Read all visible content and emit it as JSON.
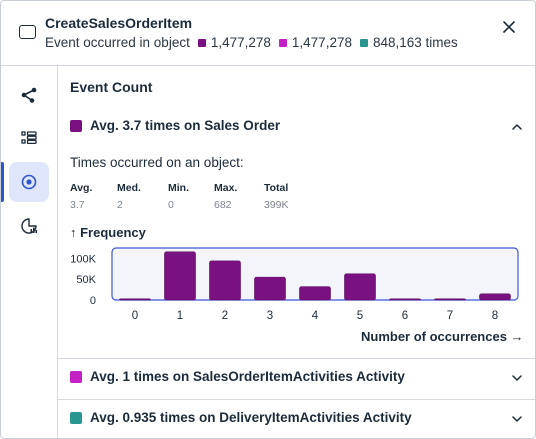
{
  "header": {
    "title": "CreateSalesOrderItem",
    "subtitle": "Event occurred in object",
    "counts": [
      {
        "value": "1,477,278",
        "color": "#7a1180"
      },
      {
        "value": "1,477,278",
        "color": "#c21fc4"
      },
      {
        "value": "848,163 times",
        "color": "#2a9690"
      }
    ],
    "close_icon": "close-icon"
  },
  "sidebar": {
    "items": [
      {
        "icon": "graph-nodes-icon",
        "active": false
      },
      {
        "icon": "list-icon",
        "active": false
      },
      {
        "icon": "target-icon",
        "active": true
      },
      {
        "icon": "pie-chart-icon",
        "active": false
      }
    ]
  },
  "main": {
    "section_title": "Event Count",
    "accordions": [
      {
        "label": "Avg. 3.7 times on Sales Order",
        "color": "#7a1180",
        "expanded": true
      },
      {
        "label": "Avg. 1 times on SalesOrderItemActivities Activity",
        "color": "#c21fc4",
        "expanded": false
      },
      {
        "label": "Avg. 0.935 times on DeliveryItemActivities Activity",
        "color": "#2a9690",
        "expanded": false
      }
    ],
    "occurrence_label": "Times occurred on an object:",
    "stats": [
      {
        "key": "Avg.",
        "value": "3.7"
      },
      {
        "key": "Med.",
        "value": "2"
      },
      {
        "key": "Min.",
        "value": "0"
      },
      {
        "key": "Max.",
        "value": "682"
      },
      {
        "key": "Total",
        "value": "399K"
      }
    ]
  },
  "chart_data": {
    "type": "bar",
    "title": "↑ Frequency",
    "xlabel": "Number of occurrences →",
    "categories": [
      "0",
      "1",
      "2",
      "3",
      "4",
      "5",
      "6",
      "7",
      "8"
    ],
    "values": [
      1500,
      116000,
      94000,
      55000,
      32000,
      63000,
      3000,
      1500,
      15000
    ],
    "y_ticks": [
      "100K",
      "50K",
      "0"
    ],
    "ylim": [
      0,
      125000
    ],
    "bar_color": "#7a1180",
    "grid": false
  }
}
